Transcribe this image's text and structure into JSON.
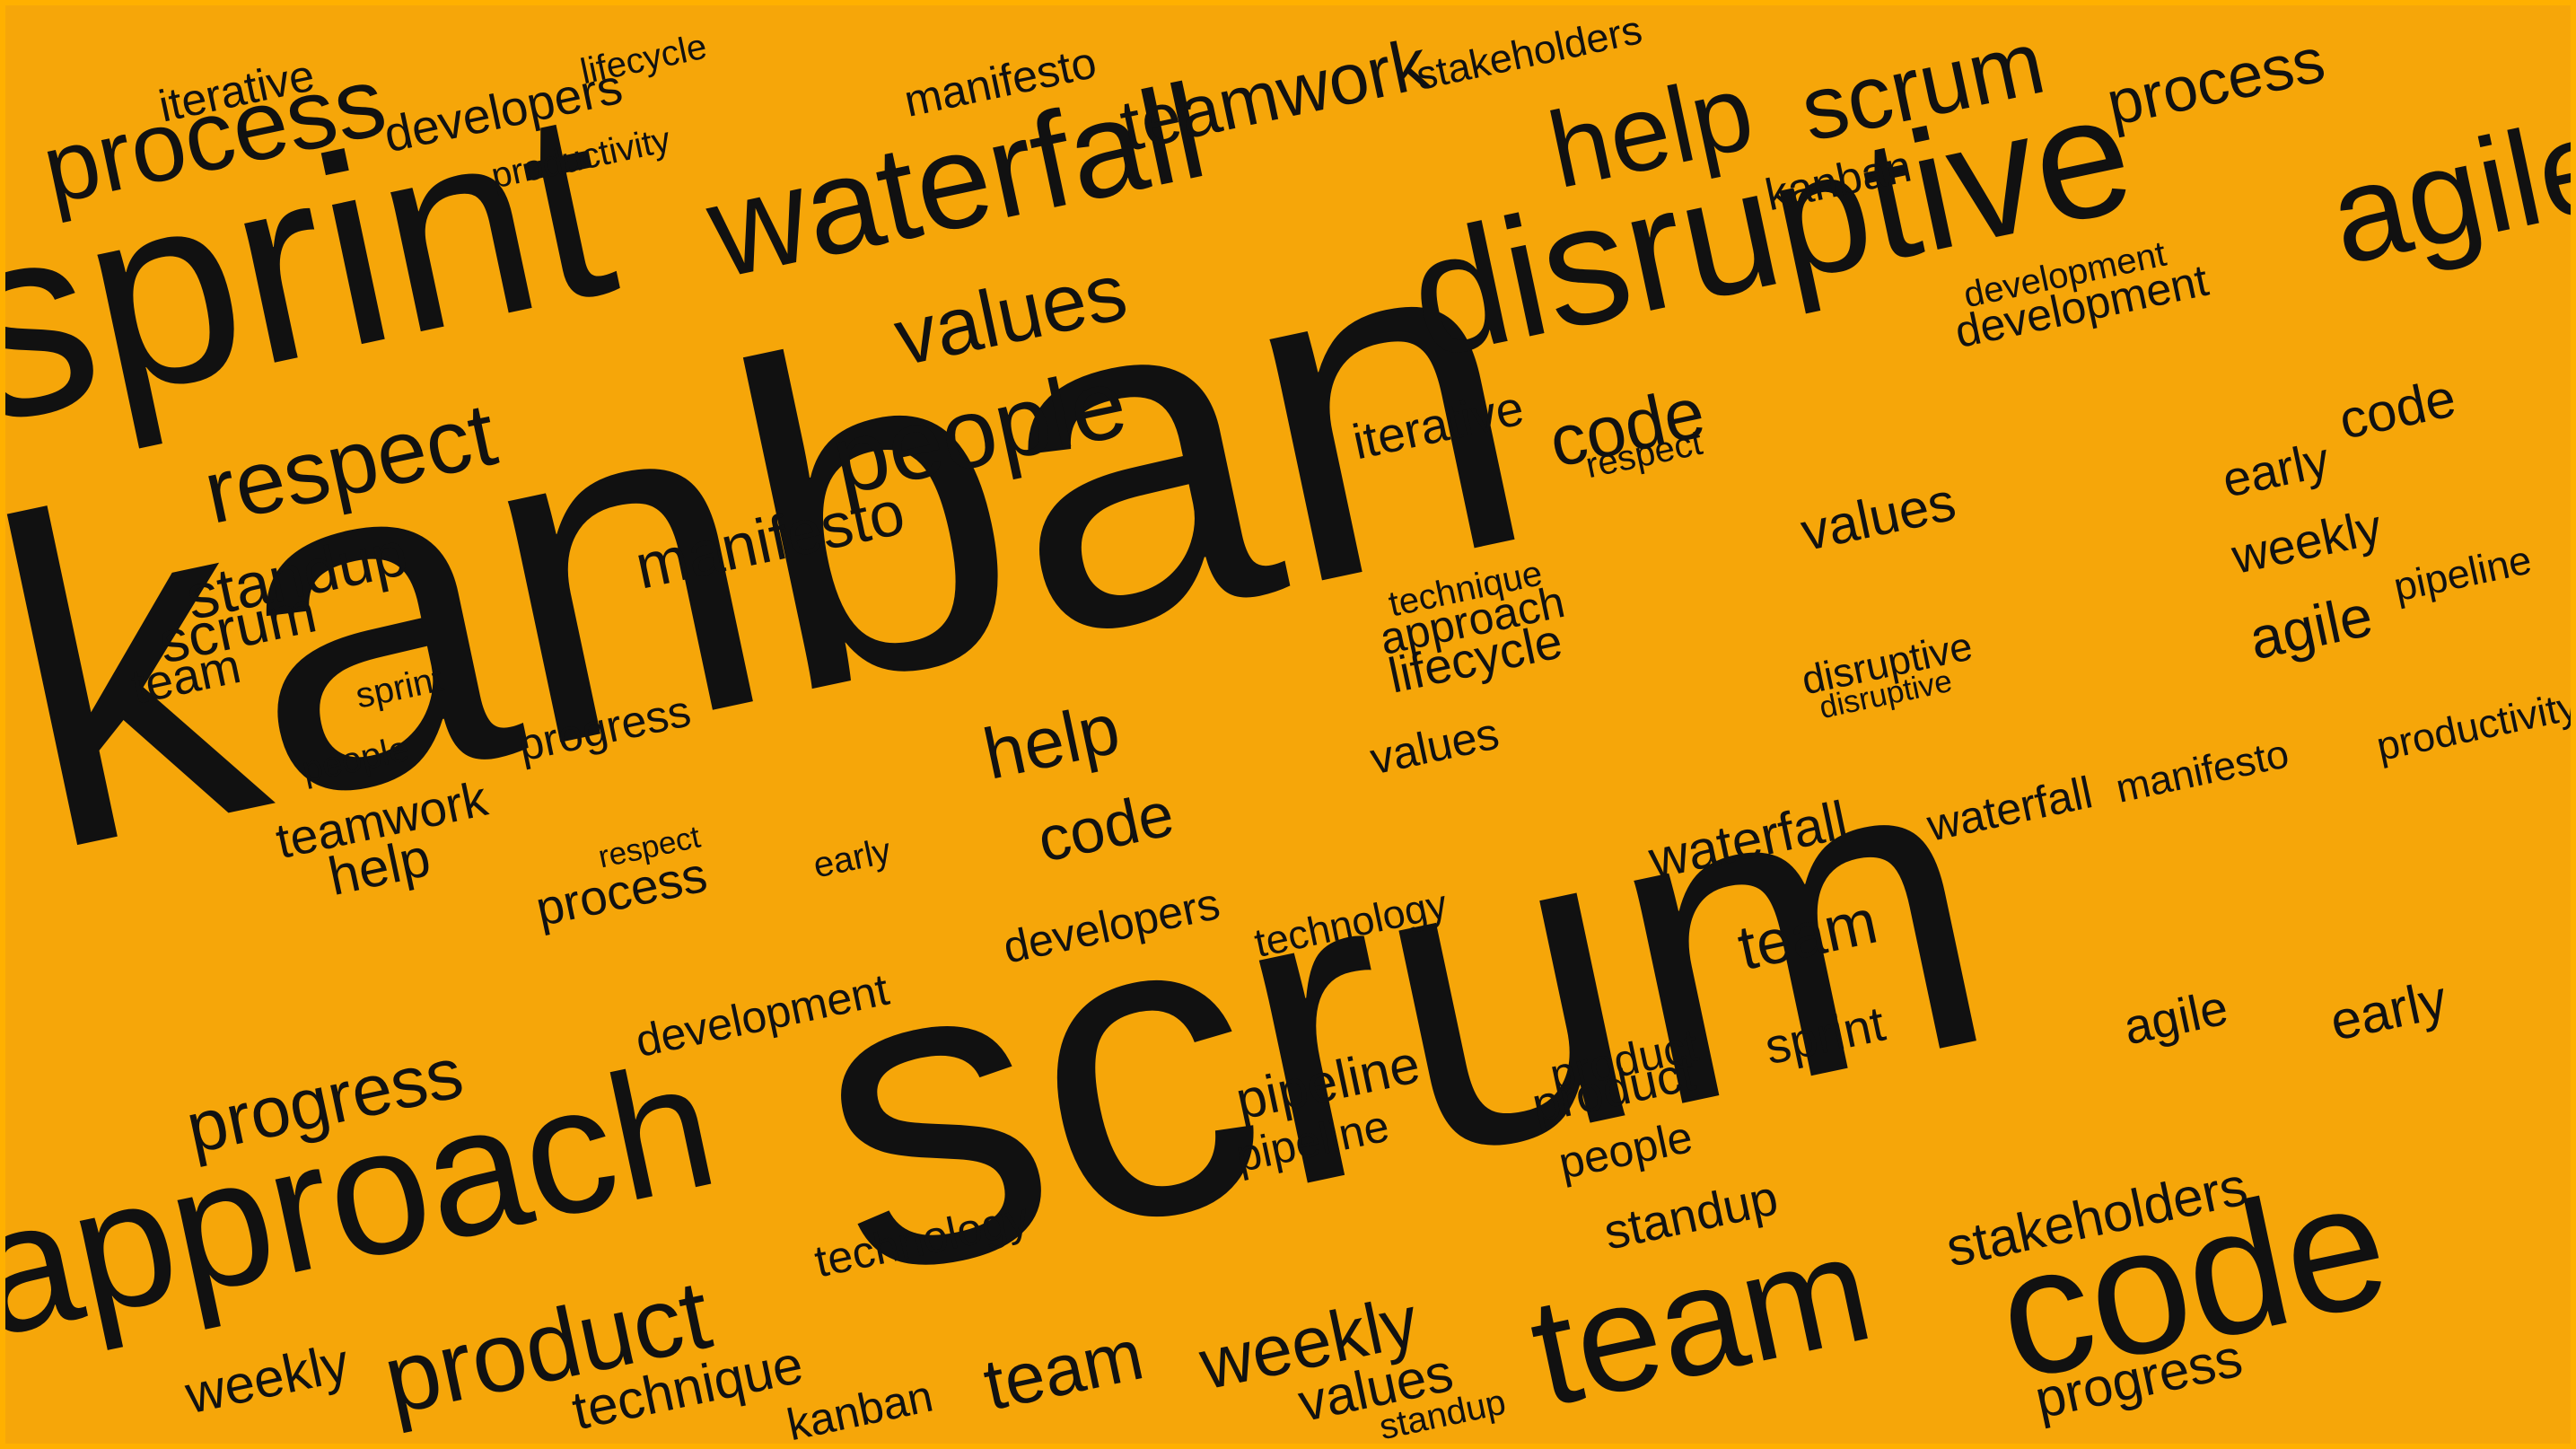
{
  "colors": {
    "background": "#f6a609",
    "frame": "#ffb000",
    "word_primary": "#111111",
    "word_secondary": "#3a2400"
  },
  "words": [
    "kanban",
    "scrum",
    "sprint",
    "disruptive",
    "waterfall",
    "approach",
    "code",
    "team",
    "agile",
    "process",
    "help",
    "teamwork",
    "people",
    "values",
    "respect",
    "manifesto",
    "product",
    "progress",
    "weekly",
    "technique",
    "stakeholders",
    "developers",
    "iterative",
    "lifecycle",
    "productivity",
    "development",
    "standup",
    "pipeline",
    "technology",
    "early",
    "kanban",
    "scrum",
    "team",
    "code",
    "product",
    "values",
    "sprint",
    "people",
    "process",
    "help",
    "standup",
    "technique",
    "lifecycle",
    "early",
    "weekly",
    "manifesto",
    "agile",
    "code",
    "teamwork",
    "respect",
    "waterfall",
    "iterative",
    "developers",
    "pipeline",
    "pipeline",
    "people",
    "progress",
    "stakeholders",
    "development",
    "values",
    "disruptive",
    "team",
    "scrum",
    "kanban",
    "approach",
    "technology",
    "help",
    "code",
    "waterfall",
    "standup",
    "agile",
    "early",
    "sprint",
    "team",
    "process",
    "respect",
    "productivity",
    "product",
    "manifesto",
    "values",
    "development",
    "weekly",
    "progress",
    "disruptive"
  ]
}
